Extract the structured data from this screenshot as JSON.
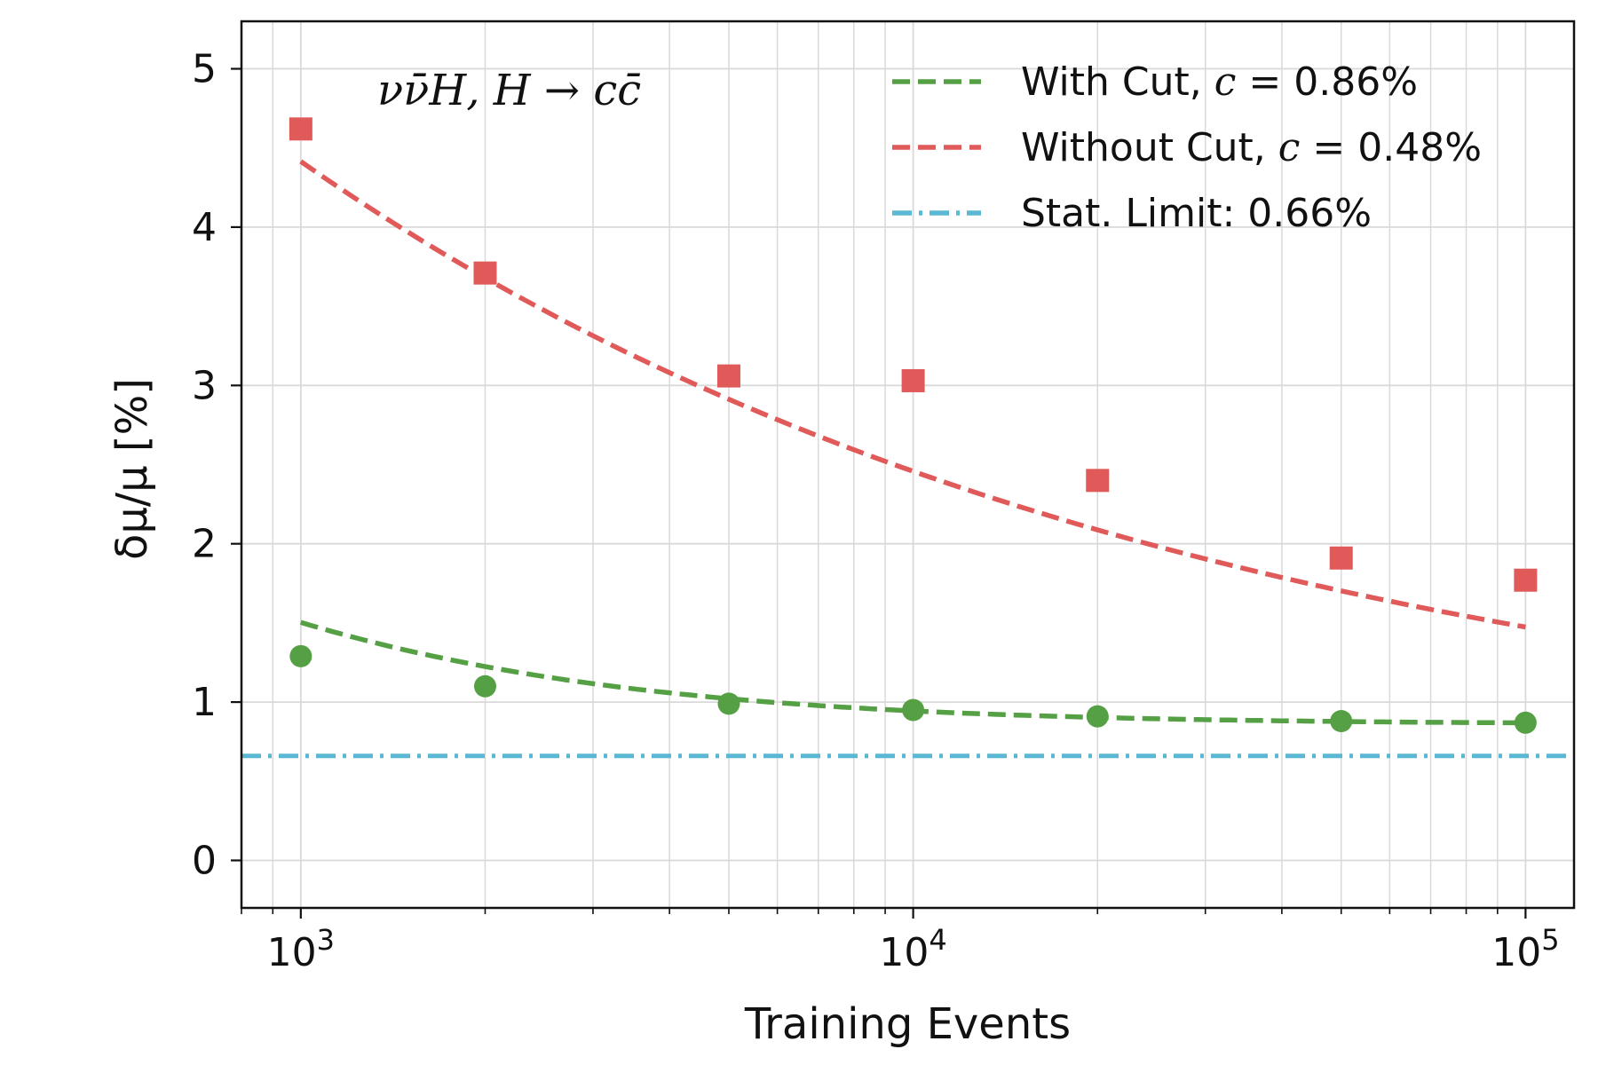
{
  "chart_data": {
    "type": "line",
    "title": "",
    "annotation": "νν̄H, H → cc̄",
    "xlabel": "Training Events",
    "ylabel": "δμ/μ [%]",
    "xscale": "log",
    "xlim": [
      800,
      120000
    ],
    "ylim": [
      -0.3,
      5.3
    ],
    "grid": true,
    "x_ticks": [
      {
        "value": 1000,
        "base": "10",
        "exp": "3"
      },
      {
        "value": 10000,
        "base": "10",
        "exp": "4"
      },
      {
        "value": 100000,
        "base": "10",
        "exp": "5"
      }
    ],
    "y_ticks": [
      {
        "value": 0,
        "label": "0"
      },
      {
        "value": 1,
        "label": "1"
      },
      {
        "value": 2,
        "label": "2"
      },
      {
        "value": 3,
        "label": "3"
      },
      {
        "value": 4,
        "label": "4"
      },
      {
        "value": 5,
        "label": "5"
      }
    ],
    "legend_position": "top-right",
    "series": [
      {
        "name": "With Cut, c = 0.86%",
        "legend_plain": "With Cut, ",
        "legend_c": "c",
        "legend_rest": " = 0.86%",
        "color": "#55a044",
        "marker": "circle",
        "x": [
          1000,
          2000,
          5000,
          10000,
          20000,
          50000,
          100000
        ],
        "y": [
          1.29,
          1.1,
          0.99,
          0.95,
          0.91,
          0.88,
          0.87
        ],
        "fit": {
          "form": "sqrt(c^2 + (a/sqrt(N))^2)",
          "a": 39.0,
          "c": 0.86
        }
      },
      {
        "name": "Without Cut, c = 0.48%",
        "legend_plain": "Without Cut, ",
        "legend_c": "c",
        "legend_rest": " = 0.48%",
        "color": "#e05a5a",
        "marker": "square",
        "x": [
          1000,
          2000,
          5000,
          10000,
          20000,
          50000,
          100000
        ],
        "y": [
          4.62,
          3.71,
          3.06,
          3.03,
          2.4,
          1.91,
          1.77
        ],
        "fit": {
          "form": "a*N^(-b) + c",
          "a": 31.0,
          "b": 0.2988,
          "c": 0.48
        }
      }
    ],
    "reference_line": {
      "name": "Stat. Limit: 0.66%",
      "value": 0.66,
      "color": "#5bb8d4",
      "style": "dash-dot"
    }
  }
}
